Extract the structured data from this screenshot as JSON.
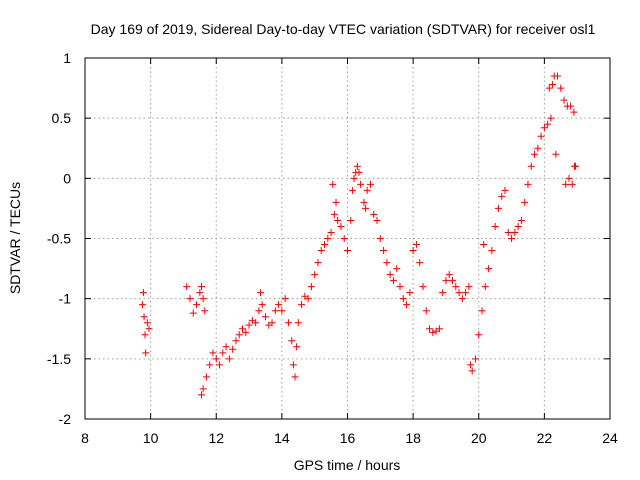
{
  "chart_data": {
    "type": "scatter",
    "title": "Day 169 of 2019, Sidereal Day-to-day VTEC variation (SDTVAR) for receiver osl1",
    "xlabel": "GPS time / hours",
    "ylabel": "SDTVAR / TECUs",
    "xlim": [
      8,
      24
    ],
    "ylim": [
      -2,
      1
    ],
    "xticks": [
      8,
      10,
      12,
      14,
      16,
      18,
      20,
      22,
      24
    ],
    "yticks": [
      -2,
      -1.5,
      -1,
      -0.5,
      0,
      0.5,
      1
    ],
    "grid": true,
    "marker": "+",
    "color": "#ff0000",
    "series": [
      {
        "name": "osl1",
        "points": [
          [
            9.75,
            -1.05
          ],
          [
            9.78,
            -0.95
          ],
          [
            9.8,
            -1.15
          ],
          [
            9.83,
            -1.3
          ],
          [
            9.85,
            -1.45
          ],
          [
            9.9,
            -1.2
          ],
          [
            9.95,
            -1.25
          ],
          [
            11.1,
            -0.9
          ],
          [
            11.2,
            -1.0
          ],
          [
            11.3,
            -1.12
          ],
          [
            11.4,
            -1.05
          ],
          [
            11.5,
            -0.95
          ],
          [
            11.55,
            -0.9
          ],
          [
            11.6,
            -1.0
          ],
          [
            11.65,
            -1.1
          ],
          [
            11.55,
            -1.8
          ],
          [
            11.6,
            -1.75
          ],
          [
            11.7,
            -1.65
          ],
          [
            11.8,
            -1.55
          ],
          [
            11.9,
            -1.45
          ],
          [
            12.0,
            -1.5
          ],
          [
            12.1,
            -1.55
          ],
          [
            12.2,
            -1.45
          ],
          [
            12.3,
            -1.4
          ],
          [
            12.4,
            -1.5
          ],
          [
            12.5,
            -1.42
          ],
          [
            12.6,
            -1.35
          ],
          [
            12.7,
            -1.3
          ],
          [
            12.8,
            -1.25
          ],
          [
            12.9,
            -1.28
          ],
          [
            13.0,
            -1.22
          ],
          [
            13.1,
            -1.18
          ],
          [
            13.2,
            -1.2
          ],
          [
            13.3,
            -1.1
          ],
          [
            13.35,
            -0.95
          ],
          [
            13.4,
            -1.05
          ],
          [
            13.5,
            -1.15
          ],
          [
            13.6,
            -1.22
          ],
          [
            13.7,
            -1.2
          ],
          [
            13.8,
            -1.1
          ],
          [
            13.9,
            -1.05
          ],
          [
            14.0,
            -1.1
          ],
          [
            14.1,
            -1.0
          ],
          [
            14.2,
            -1.2
          ],
          [
            14.3,
            -1.35
          ],
          [
            14.35,
            -1.55
          ],
          [
            14.4,
            -1.65
          ],
          [
            14.45,
            -1.4
          ],
          [
            14.5,
            -1.2
          ],
          [
            14.6,
            -1.05
          ],
          [
            14.7,
            -0.98
          ],
          [
            14.8,
            -1.0
          ],
          [
            14.9,
            -0.9
          ],
          [
            15.0,
            -0.8
          ],
          [
            15.1,
            -0.7
          ],
          [
            15.2,
            -0.6
          ],
          [
            15.3,
            -0.55
          ],
          [
            15.4,
            -0.5
          ],
          [
            15.5,
            -0.45
          ],
          [
            15.55,
            -0.05
          ],
          [
            15.6,
            -0.3
          ],
          [
            15.65,
            -0.2
          ],
          [
            15.7,
            -0.35
          ],
          [
            15.8,
            -0.4
          ],
          [
            15.9,
            -0.5
          ],
          [
            16.0,
            -0.6
          ],
          [
            16.1,
            -0.35
          ],
          [
            16.15,
            -0.1
          ],
          [
            16.2,
            0.0
          ],
          [
            16.25,
            0.05
          ],
          [
            16.3,
            0.1
          ],
          [
            16.35,
            0.05
          ],
          [
            16.4,
            -0.05
          ],
          [
            16.5,
            -0.2
          ],
          [
            16.55,
            -0.25
          ],
          [
            16.6,
            -0.1
          ],
          [
            16.7,
            -0.05
          ],
          [
            16.8,
            -0.3
          ],
          [
            16.9,
            -0.35
          ],
          [
            17.0,
            -0.5
          ],
          [
            17.1,
            -0.6
          ],
          [
            17.2,
            -0.7
          ],
          [
            17.3,
            -0.8
          ],
          [
            17.4,
            -0.85
          ],
          [
            17.5,
            -0.75
          ],
          [
            17.6,
            -0.9
          ],
          [
            17.7,
            -1.0
          ],
          [
            17.8,
            -1.05
          ],
          [
            17.9,
            -0.95
          ],
          [
            18.0,
            -0.6
          ],
          [
            18.1,
            -0.55
          ],
          [
            18.2,
            -0.7
          ],
          [
            18.3,
            -0.9
          ],
          [
            18.4,
            -1.1
          ],
          [
            18.5,
            -1.25
          ],
          [
            18.6,
            -1.28
          ],
          [
            18.7,
            -1.27
          ],
          [
            18.8,
            -1.25
          ],
          [
            18.9,
            -0.95
          ],
          [
            19.0,
            -0.85
          ],
          [
            19.1,
            -0.8
          ],
          [
            19.2,
            -0.85
          ],
          [
            19.3,
            -0.9
          ],
          [
            19.4,
            -0.95
          ],
          [
            19.5,
            -1.0
          ],
          [
            19.6,
            -0.95
          ],
          [
            19.7,
            -0.9
          ],
          [
            19.75,
            -1.55
          ],
          [
            19.8,
            -1.6
          ],
          [
            19.9,
            -1.5
          ],
          [
            20.0,
            -1.3
          ],
          [
            20.1,
            -1.1
          ],
          [
            20.15,
            -0.55
          ],
          [
            20.2,
            -0.9
          ],
          [
            20.3,
            -0.75
          ],
          [
            20.4,
            -0.6
          ],
          [
            20.5,
            -0.4
          ],
          [
            20.6,
            -0.25
          ],
          [
            20.7,
            -0.15
          ],
          [
            20.8,
            -0.1
          ],
          [
            20.9,
            -0.45
          ],
          [
            21.0,
            -0.5
          ],
          [
            21.1,
            -0.45
          ],
          [
            21.2,
            -0.4
          ],
          [
            21.3,
            -0.35
          ],
          [
            21.4,
            -0.2
          ],
          [
            21.5,
            -0.05
          ],
          [
            21.6,
            0.1
          ],
          [
            21.7,
            0.2
          ],
          [
            21.8,
            0.25
          ],
          [
            21.9,
            0.35
          ],
          [
            22.0,
            0.42
          ],
          [
            22.1,
            0.45
          ],
          [
            22.15,
            0.75
          ],
          [
            22.2,
            0.5
          ],
          [
            22.25,
            0.78
          ],
          [
            22.3,
            0.85
          ],
          [
            22.35,
            0.2
          ],
          [
            22.4,
            0.85
          ],
          [
            22.5,
            0.75
          ],
          [
            22.6,
            0.65
          ],
          [
            22.65,
            -0.05
          ],
          [
            22.7,
            0.6
          ],
          [
            22.75,
            0.0
          ],
          [
            22.8,
            0.6
          ],
          [
            22.85,
            -0.05
          ],
          [
            22.9,
            0.55
          ],
          [
            22.92,
            0.1
          ],
          [
            22.95,
            0.1
          ]
        ]
      }
    ]
  }
}
